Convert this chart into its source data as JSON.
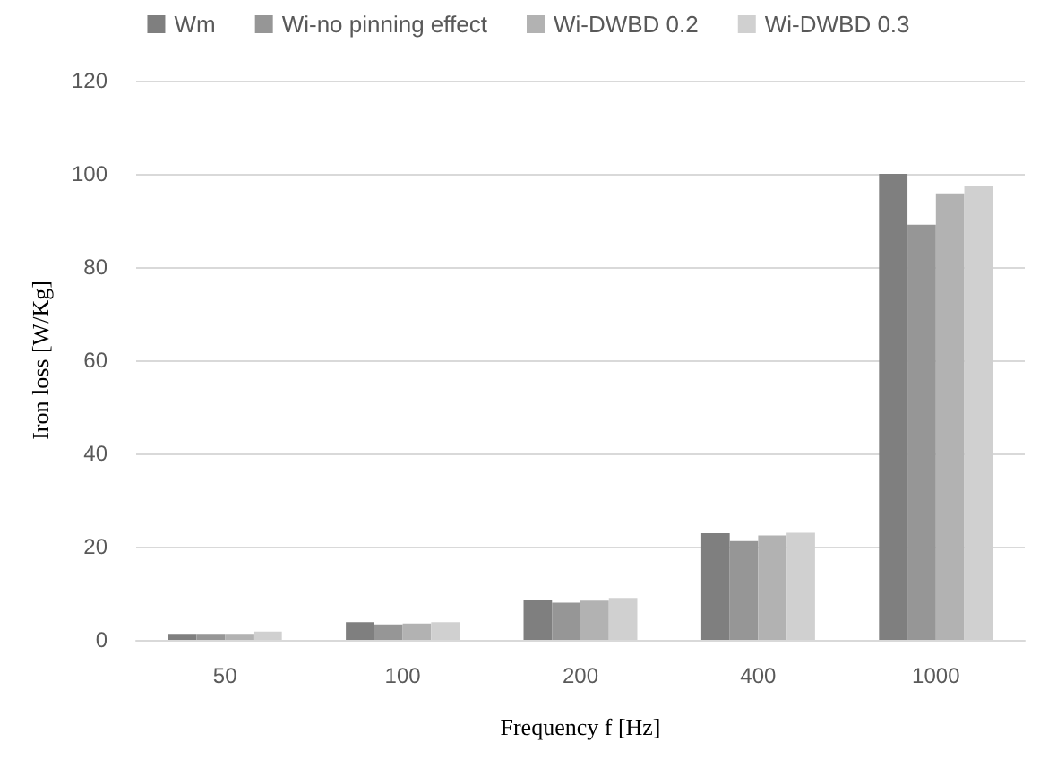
{
  "chart_data": {
    "type": "bar",
    "xlabel": "Frequency f [Hz]",
    "ylabel": "Iron loss [W/Kg]",
    "categories": [
      "50",
      "100",
      "200",
      "400",
      "1000"
    ],
    "series": [
      {
        "name": "Wm",
        "color": "#7f7f7f",
        "values": [
          1.3,
          3.8,
          8.6,
          22.9,
          100
        ]
      },
      {
        "name": "Wi-no pinning effect",
        "color": "#969696",
        "values": [
          1.3,
          3.3,
          8.0,
          21.2,
          89.1
        ]
      },
      {
        "name": "Wi-DWBD 0.2",
        "color": "#b2b2b2",
        "values": [
          1.3,
          3.5,
          8.4,
          22.4,
          95.8
        ]
      },
      {
        "name": "Wi-DWBD 0.3",
        "color": "#d0d0d0",
        "values": [
          1.8,
          3.8,
          9.0,
          23.0,
          97.4
        ]
      }
    ],
    "ylim": [
      0,
      120
    ],
    "yticks": [
      0,
      20,
      40,
      60,
      80,
      100,
      120
    ],
    "grid": "y",
    "legend": "top"
  }
}
